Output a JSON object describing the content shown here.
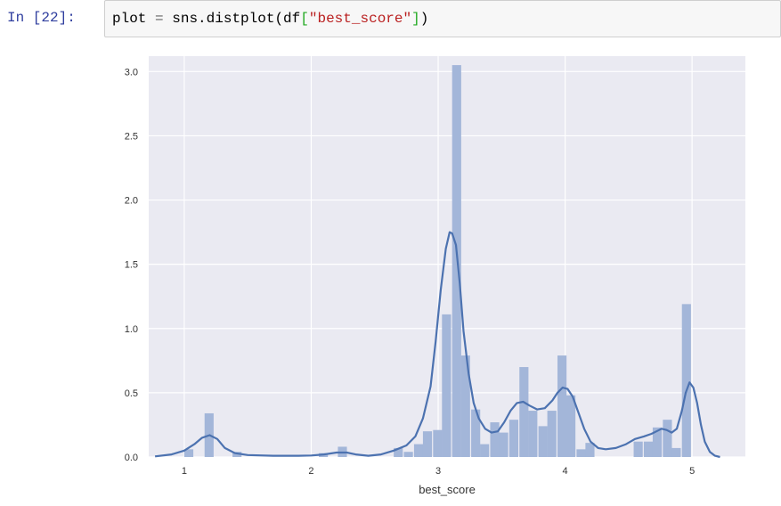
{
  "cell": {
    "prompt": "In [22]:",
    "code": {
      "var": "plot",
      "op": "=",
      "call": "sns.distplot(df",
      "open": "[",
      "arg": "\"best_score\"",
      "close": "]",
      "end": ")"
    }
  },
  "chart_data": {
    "type": "bar",
    "xlabel": "best_score",
    "ylabel": "",
    "title": "",
    "xlim": [
      0.72,
      5.42
    ],
    "ylim": [
      0,
      3.12
    ],
    "xticks": [
      "1",
      "2",
      "3",
      "4",
      "5"
    ],
    "yticks": [
      "0.0",
      "0.5",
      "1.0",
      "1.5",
      "2.0",
      "2.5",
      "3.0"
    ],
    "grid": true,
    "background": "#eaeaf2",
    "bar_color": "#a3b6d9",
    "line_color": "#4c72b0",
    "bin_width": 0.0755,
    "bins": [
      {
        "x0": 1.0,
        "value": 0.06
      },
      {
        "x0": 1.16,
        "value": 0.34
      },
      {
        "x0": 1.38,
        "value": 0.04
      },
      {
        "x0": 2.06,
        "value": 0.03
      },
      {
        "x0": 2.21,
        "value": 0.08
      },
      {
        "x0": 2.65,
        "value": 0.07
      },
      {
        "x0": 2.73,
        "value": 0.04
      },
      {
        "x0": 2.81,
        "value": 0.1
      },
      {
        "x0": 2.88,
        "value": 0.2
      },
      {
        "x0": 2.96,
        "value": 0.21
      },
      {
        "x0": 3.03,
        "value": 1.11
      },
      {
        "x0": 3.11,
        "value": 3.05
      },
      {
        "x0": 3.18,
        "value": 0.79
      },
      {
        "x0": 3.26,
        "value": 0.37
      },
      {
        "x0": 3.33,
        "value": 0.1
      },
      {
        "x0": 3.41,
        "value": 0.27
      },
      {
        "x0": 3.48,
        "value": 0.19
      },
      {
        "x0": 3.56,
        "value": 0.29
      },
      {
        "x0": 3.64,
        "value": 0.7
      },
      {
        "x0": 3.71,
        "value": 0.36
      },
      {
        "x0": 3.79,
        "value": 0.24
      },
      {
        "x0": 3.86,
        "value": 0.36
      },
      {
        "x0": 3.94,
        "value": 0.79
      },
      {
        "x0": 4.01,
        "value": 0.48
      },
      {
        "x0": 4.09,
        "value": 0.06
      },
      {
        "x0": 4.16,
        "value": 0.11
      },
      {
        "x0": 4.54,
        "value": 0.12
      },
      {
        "x0": 4.62,
        "value": 0.12
      },
      {
        "x0": 4.69,
        "value": 0.23
      },
      {
        "x0": 4.77,
        "value": 0.29
      },
      {
        "x0": 4.84,
        "value": 0.07
      },
      {
        "x0": 4.92,
        "value": 1.19
      }
    ],
    "kde": {
      "x": [
        0.77,
        0.9,
        1.0,
        1.08,
        1.14,
        1.2,
        1.26,
        1.32,
        1.4,
        1.5,
        1.7,
        1.9,
        2.0,
        2.1,
        2.2,
        2.28,
        2.35,
        2.45,
        2.55,
        2.65,
        2.75,
        2.82,
        2.88,
        2.94,
        2.98,
        3.02,
        3.06,
        3.09,
        3.11,
        3.14,
        3.17,
        3.2,
        3.24,
        3.28,
        3.32,
        3.37,
        3.42,
        3.47,
        3.52,
        3.57,
        3.62,
        3.67,
        3.72,
        3.78,
        3.84,
        3.9,
        3.94,
        3.98,
        4.02,
        4.06,
        4.1,
        4.15,
        4.2,
        4.26,
        4.32,
        4.4,
        4.48,
        4.55,
        4.62,
        4.68,
        4.72,
        4.76,
        4.8,
        4.84,
        4.88,
        4.92,
        4.95,
        4.98,
        5.01,
        5.04,
        5.07,
        5.1,
        5.14,
        5.18,
        5.22
      ],
      "y": [
        0.005,
        0.02,
        0.05,
        0.1,
        0.15,
        0.17,
        0.14,
        0.07,
        0.03,
        0.015,
        0.01,
        0.01,
        0.012,
        0.02,
        0.035,
        0.035,
        0.02,
        0.01,
        0.02,
        0.05,
        0.09,
        0.16,
        0.3,
        0.55,
        0.9,
        1.3,
        1.62,
        1.75,
        1.74,
        1.65,
        1.35,
        0.98,
        0.65,
        0.42,
        0.3,
        0.22,
        0.19,
        0.2,
        0.27,
        0.36,
        0.42,
        0.43,
        0.4,
        0.37,
        0.38,
        0.44,
        0.5,
        0.54,
        0.53,
        0.47,
        0.36,
        0.22,
        0.12,
        0.07,
        0.06,
        0.07,
        0.1,
        0.14,
        0.16,
        0.18,
        0.2,
        0.22,
        0.21,
        0.19,
        0.22,
        0.36,
        0.5,
        0.58,
        0.54,
        0.42,
        0.25,
        0.12,
        0.04,
        0.01,
        0.0
      ]
    }
  }
}
